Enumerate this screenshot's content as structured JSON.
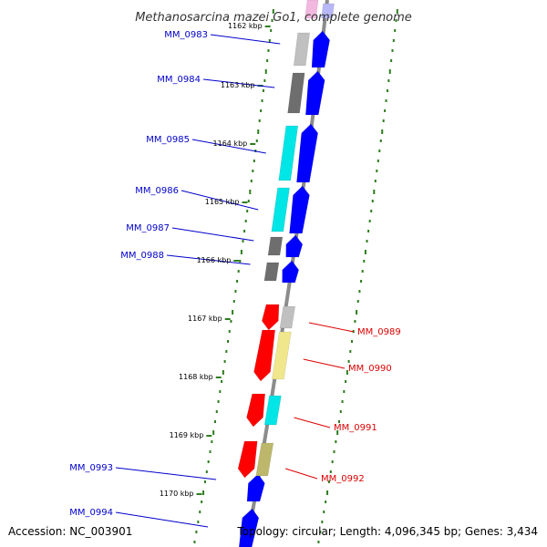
{
  "title": "Methanosarcina mazei Go1, complete genome",
  "accession": "Accession: NC_003901",
  "topology": "Topology: circular; Length: 4,096,345 bp; Genes: 3,434",
  "colors": {
    "backbone": "#8c8c8c",
    "tick": "#2e7d1e",
    "forward_label": "#0000cc",
    "reverse_label": "#dd0000",
    "gc_high": "#1f1fe0",
    "cds_forward": "#0000ff",
    "cds_reverse": "#ff0000"
  },
  "kbp_labels": [
    "1162 kbp",
    "1163 kbp",
    "1164 kbp",
    "1165 kbp",
    "1166 kbp",
    "1167 kbp",
    "1168 kbp",
    "1169 kbp",
    "1170 kbp"
  ],
  "forward_genes": [
    {
      "label": "MM_0983",
      "cog": "#c0c0c0"
    },
    {
      "label": "MM_0984",
      "cog": "#6e6e6e"
    },
    {
      "label": "MM_0985",
      "cog": "#00e5e5"
    },
    {
      "label": "MM_0986",
      "cog": "#00e5e5"
    },
    {
      "label": "MM_0987",
      "cog": "#6e6e6e"
    },
    {
      "label": "MM_0988",
      "cog": "#6e6e6e"
    },
    {
      "label": "MM_0993",
      "cog": ""
    },
    {
      "label": "MM_0994",
      "cog": ""
    }
  ],
  "reverse_genes": [
    {
      "label": "MM_0989",
      "cog": "#c0c0c0"
    },
    {
      "label": "MM_0990",
      "cog": "#f0e68c"
    },
    {
      "label": "MM_0991",
      "cog": "#00e5e5"
    },
    {
      "label": "MM_0992",
      "cog": "#bdb76b"
    }
  ]
}
